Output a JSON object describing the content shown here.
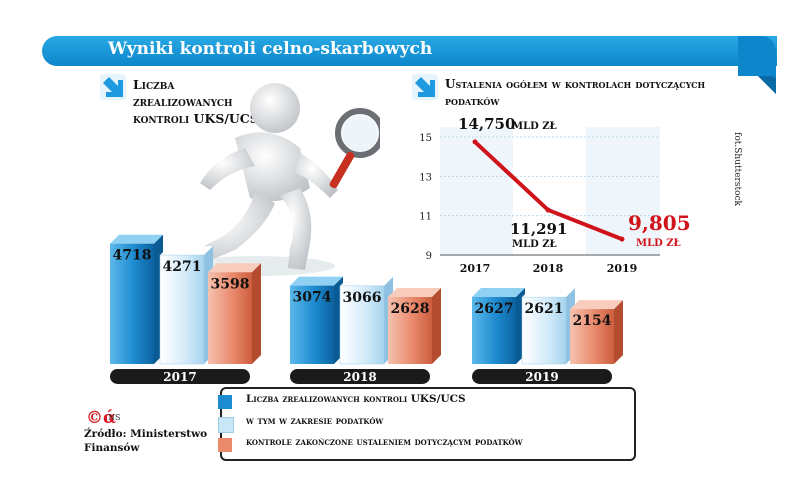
{
  "header": {
    "title": "Wyniki kontroli celno-skarbowych"
  },
  "left_section": {
    "title": "Liczba zrealizowanych kontroli UKS/UCS"
  },
  "right_section": {
    "title": "Ustalenia ogółem w kontrolach dotyczących podatków"
  },
  "credit": "fot.Shutterstock",
  "chart_data": [
    {
      "type": "bar",
      "title": "Liczba zrealizowanych kontroli UKS/UCS",
      "categories": [
        "2017",
        "2018",
        "2019"
      ],
      "series": [
        {
          "name": "Liczba zrealizowanych kontroli UKS/UCS",
          "values": [
            4718,
            3074,
            2627
          ]
        },
        {
          "name": "w tym w zakresie podatków",
          "values": [
            4271,
            3066,
            2621
          ]
        },
        {
          "name": "kontrole zakończone ustaleniem dotyczącym podatków",
          "values": [
            3598,
            2628,
            2154
          ]
        }
      ],
      "colors": [
        "#1d8bd0",
        "#c9e6f7",
        "#e98a6d"
      ]
    },
    {
      "type": "line",
      "title": "Ustalenia ogółem w kontrolach dotyczących podatków",
      "x": [
        "2017",
        "2018",
        "2019"
      ],
      "values": [
        14.75,
        11.291,
        9.805
      ],
      "labels": [
        "14,750",
        "11,291",
        "9,805"
      ],
      "unit": "mld zł",
      "yticks": [
        "15",
        "13",
        "11",
        "9"
      ],
      "ylim": [
        9,
        15
      ],
      "color": "#d0121a"
    }
  ],
  "legend": {
    "items": [
      {
        "label": "Liczba zrealizowanych kontroli UKS/UCS",
        "color": "#1d8bd0"
      },
      {
        "label": "w tym w zakresie podatków",
        "color": "#c9e6f7"
      },
      {
        "label": "kontrole zakończone ustaleniem dotyczącym podatków",
        "color": "#e98a6d"
      }
    ]
  },
  "logo": {
    "mark": "©ά",
    "text": "NS"
  },
  "source": "Źródło: Ministerstwo Finansów"
}
